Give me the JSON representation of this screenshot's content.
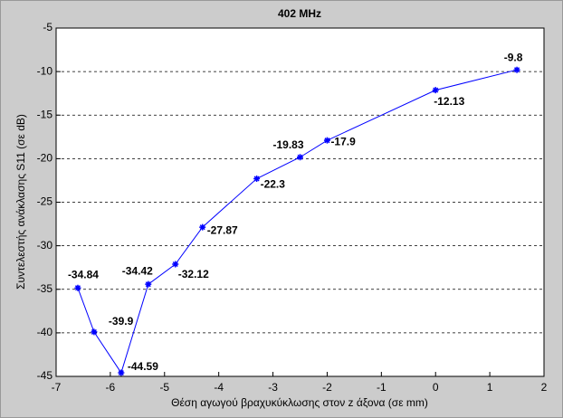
{
  "chart_data": {
    "type": "line",
    "title": "402 MHz",
    "x_label": "Θέση αγωγού βραχυκύκλωσης στον z άξονα (σε mm)",
    "y_label": "Συντελεστής ανάκλασης S11 (σε dB)",
    "x": [
      -6.6,
      -6.3,
      -5.8,
      -5.3,
      -4.8,
      -4.3,
      -3.3,
      -2.5,
      -2.0,
      0,
      1.5
    ],
    "series": [
      {
        "color": "#0000ff",
        "values": [
          -34.84,
          -39.9,
          -44.59,
          -34.42,
          -32.12,
          -27.87,
          -22.3,
          -19.83,
          -17.9,
          -12.13,
          -9.8
        ]
      }
    ],
    "xlim": [
      -7,
      2
    ],
    "xticks": [
      -7,
      -6,
      -5,
      -4,
      -3,
      -2,
      -1,
      0,
      1,
      2
    ],
    "ylim": [
      -45,
      -5
    ],
    "yticks": [
      -45,
      -40,
      -35,
      -30,
      -25,
      -20,
      -15,
      -10,
      -5
    ],
    "grid": true
  }
}
